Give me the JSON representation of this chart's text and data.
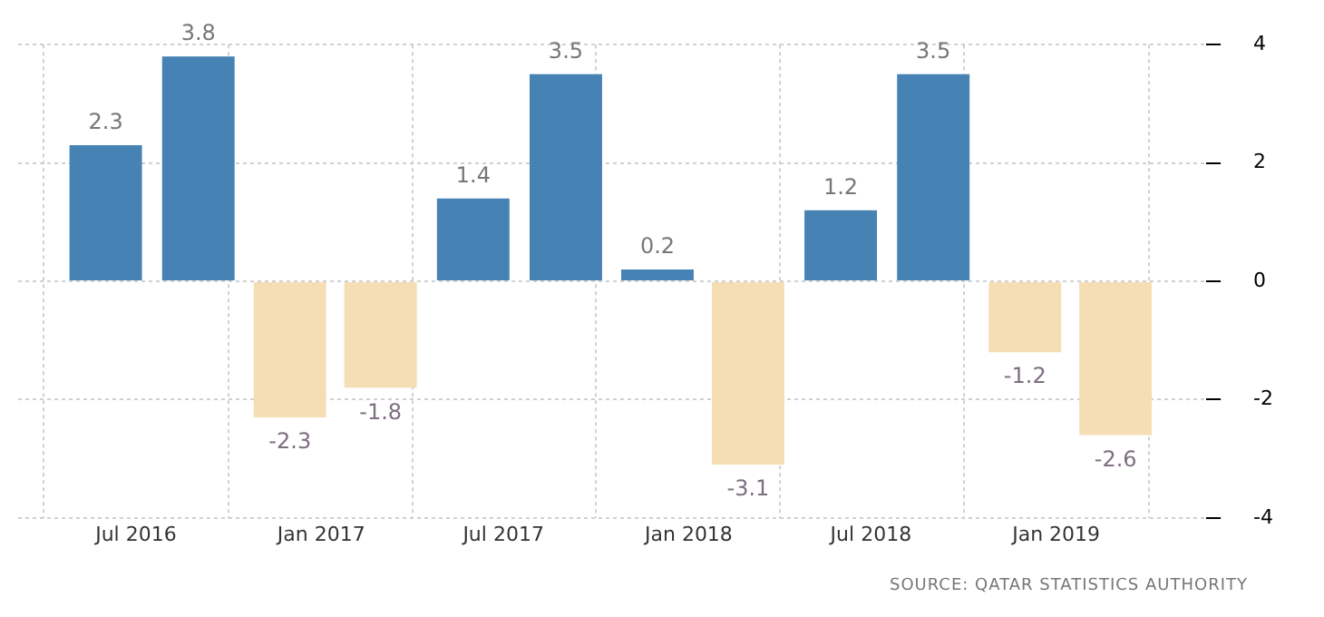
{
  "chart_data": {
    "type": "bar",
    "x": [
      "2016-06",
      "2016-09",
      "2016-12",
      "2017-03",
      "2017-06",
      "2017-09",
      "2017-12",
      "2018-03",
      "2018-06",
      "2018-09",
      "2018-12",
      "2019-03"
    ],
    "values": [
      2.3,
      3.8,
      -2.3,
      -1.8,
      1.4,
      3.5,
      0.2,
      -3.1,
      1.2,
      3.5,
      -1.2,
      -2.6
    ],
    "colors": [
      "#4682b4",
      "#4682b4",
      "#f5deb3",
      "#f5deb3",
      "#4682b4",
      "#4682b4",
      "#4682b4",
      "#f5deb3",
      "#4682b4",
      "#4682b4",
      "#f5deb3",
      "#f5deb3"
    ],
    "xlim": [
      "2016-03-06",
      "2019-05-30"
    ],
    "xticks": [
      {
        "value": "2016-07",
        "label": "Jul 2016"
      },
      {
        "value": "2017-01",
        "label": "Jan 2017"
      },
      {
        "value": "2017-07",
        "label": "Jul 2017"
      },
      {
        "value": "2018-01",
        "label": "Jan 2018"
      },
      {
        "value": "2018-07",
        "label": "Jul 2018"
      },
      {
        "value": "2019-01",
        "label": "Jan 2019"
      }
    ],
    "ylim": [
      -4,
      4
    ],
    "yticks": [
      -4,
      -2,
      0,
      2,
      4
    ],
    "grid": true,
    "legend": false,
    "data_labels": true,
    "annotations": [
      "SOURCE: QATAR STATISTICS AUTHORITY"
    ]
  }
}
